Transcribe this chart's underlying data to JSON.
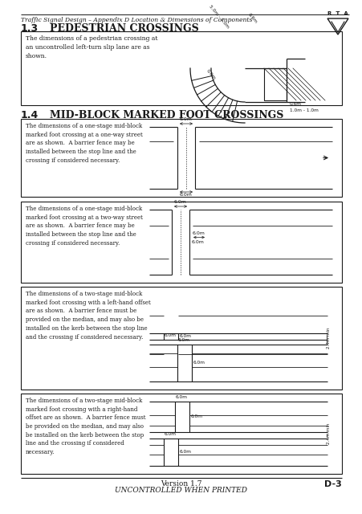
{
  "page_title": "Traffic Signal Design – Appendix D Location & Dimensions of Components",
  "page_number": "D-3",
  "version_text": "Version 1.7",
  "uncontrolled_text": "UNCONTROLLED WHEN PRINTED",
  "section_13_title": "1.3",
  "section_13_subtitle": "Pedestrian crossings",
  "section_14_title": "1.4",
  "section_14_subtitle": "Mid-block marked foot crossings",
  "section_13_desc": "The dimensions of a pedestrian crossing at\nan uncontrolled left-turn slip lane are as\nshown.",
  "box1_desc": "The dimensions of a one-stage mid-block\nmarked foot crossing at a one-way street\nare as shown.  A barrier fence may be\ninstalled between the stop line and the\ncrossing if considered necessary.",
  "box2_desc": "The dimensions of a one-stage mid-block\nmarked foot crossing at a two-way street\nare as shown.  A barrier fence may be\ninstalled between the stop line and the\ncrossing if considered necessary.",
  "box3_desc": "The dimensions of a two-stage mid-block\nmarked foot crossing with a left-hand offset\nare as shown.  A barrier fence must be\nprovided on the median, and may also be\ninstalled on the kerb between the stop line\nand the crossing if considered necessary.",
  "box4_desc": "The dimensions of a two-stage mid-block\nmarked foot crossing with a right-hand\noffset are as shown.  A barrier fence must\nbe provided on the median, and may also\nbe installed on the kerb between the stop\nline and the crossing if considered\nnecessary.",
  "bg_color": "#ffffff",
  "text_color": "#1a1a1a",
  "line_color": "#1a1a1a"
}
